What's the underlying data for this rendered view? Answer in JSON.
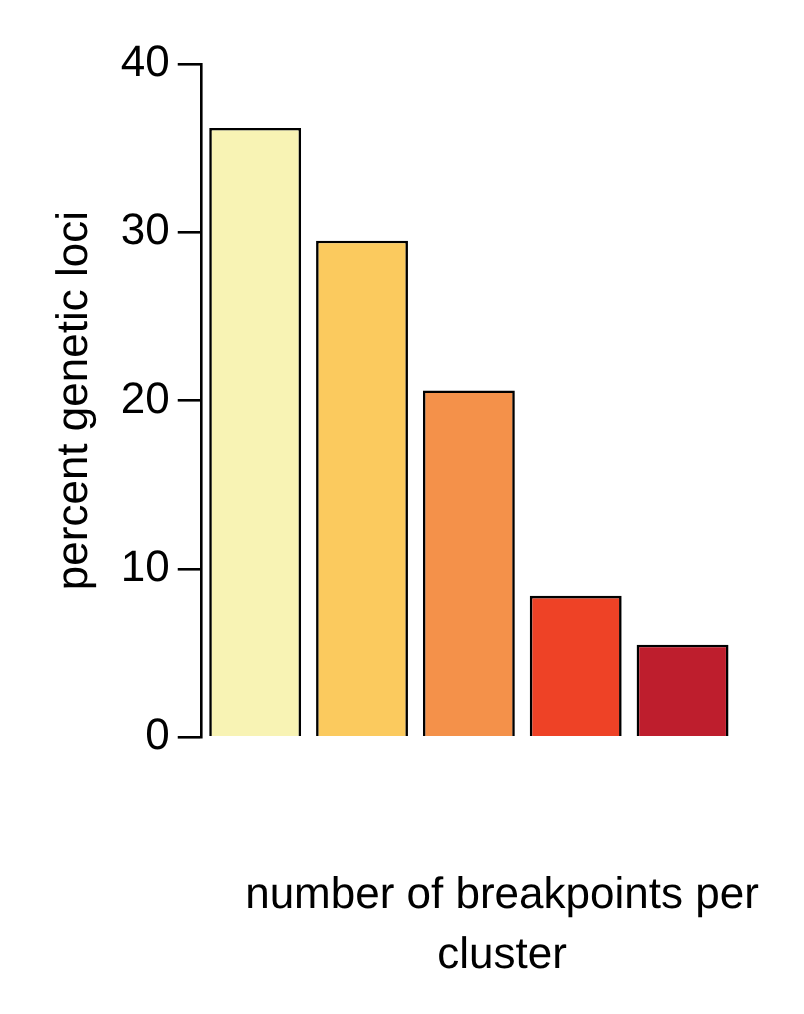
{
  "chart_data": {
    "type": "bar",
    "xlabel": "number of breakpoints per cluster",
    "ylabel": "percent genetic loci",
    "categories": [
      null,
      null,
      null,
      null,
      null
    ],
    "values": [
      36.2,
      29.5,
      20.6,
      8.4,
      5.5
    ],
    "colors": [
      "#f8f3b4",
      "#fbca5e",
      "#f4914a",
      "#ee4226",
      "#be1e2d"
    ],
    "ylim": [
      0,
      40
    ],
    "yticks": [
      0,
      10,
      20,
      30,
      40
    ],
    "grid": false,
    "legend": false
  }
}
